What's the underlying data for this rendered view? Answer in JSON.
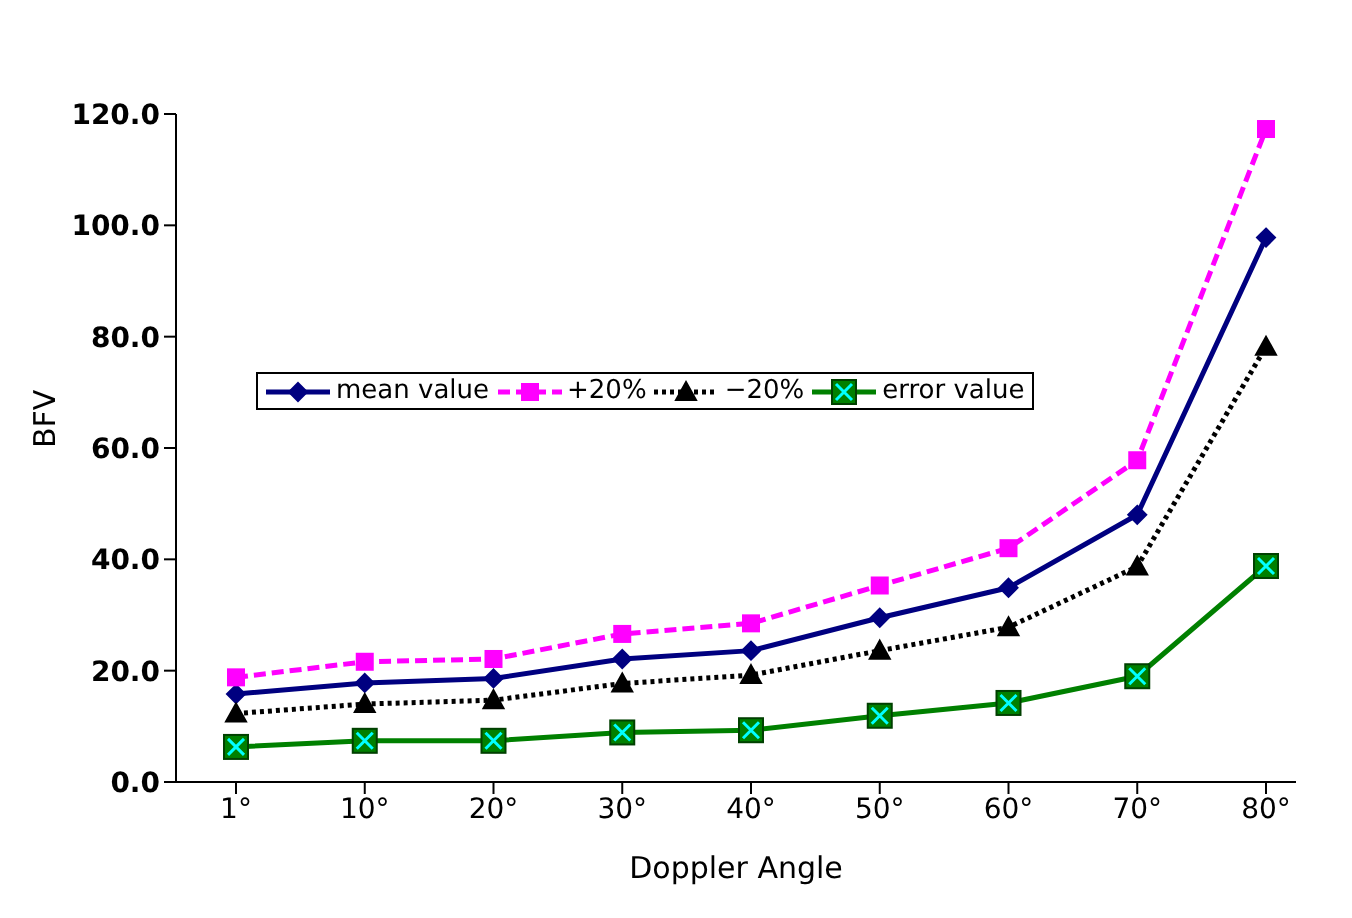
{
  "chart_data": {
    "type": "line",
    "xlabel": "Doppler Angle",
    "ylabel": "BFV",
    "categories": [
      "1°",
      "10°",
      "20°",
      "30°",
      "40°",
      "50°",
      "60°",
      "70°",
      "80°"
    ],
    "series": [
      {
        "name": "mean value",
        "color": "#000080",
        "marker": "diamond",
        "line_style": "solid",
        "values": [
          15.8,
          17.8,
          18.6,
          22.1,
          23.6,
          29.5,
          34.9,
          48.0,
          97.8
        ]
      },
      {
        "name": "+20%",
        "color": "#ff00ff",
        "marker": "square",
        "line_style": "dashed",
        "values": [
          18.8,
          21.6,
          22.1,
          26.6,
          28.5,
          35.3,
          42.0,
          57.8,
          117.3
        ]
      },
      {
        "name": "−20%",
        "color": "#000000",
        "marker": "triangle",
        "line_style": "dotted",
        "values": [
          12.3,
          14.0,
          14.7,
          17.7,
          19.2,
          23.6,
          27.8,
          38.7,
          78.2
        ]
      },
      {
        "name": "error value",
        "color": "#008000",
        "marker": "square",
        "line_style": "solid",
        "values": [
          6.3,
          7.4,
          7.4,
          8.9,
          9.3,
          11.9,
          14.2,
          19.0,
          38.8
        ]
      }
    ],
    "ylim": [
      0,
      120
    ],
    "yticks": [
      {
        "value": 0,
        "label": "0.0"
      },
      {
        "value": 20,
        "label": "20.0"
      },
      {
        "value": 40,
        "label": "40.0"
      },
      {
        "value": 60,
        "label": "60.0"
      },
      {
        "value": 80,
        "label": "80.0"
      },
      {
        "value": 100,
        "label": "100.0"
      },
      {
        "value": 120,
        "label": "120.0"
      }
    ],
    "grid": false,
    "legend": "left"
  }
}
